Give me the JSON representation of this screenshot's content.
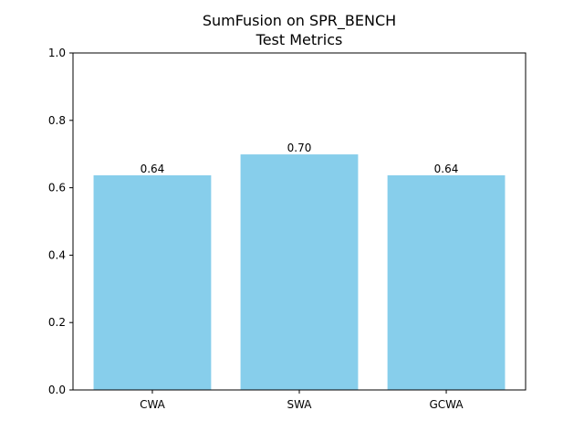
{
  "chart_data": {
    "type": "bar",
    "title_lines": [
      "SumFusion on SPR_BENCH",
      "Test Metrics"
    ],
    "categories": [
      "CWA",
      "SWA",
      "GCWA"
    ],
    "values": [
      0.637,
      0.699,
      0.637
    ],
    "value_labels": [
      "0.64",
      "0.70",
      "0.64"
    ],
    "ylim": [
      0,
      1.0
    ],
    "yticks": [
      0.0,
      0.2,
      0.4,
      0.6,
      0.8,
      1.0
    ],
    "ytick_labels": [
      "0.0",
      "0.2",
      "0.4",
      "0.6",
      "0.8",
      "1.0"
    ],
    "xlabel": "",
    "ylabel": "",
    "grid": false,
    "bar_color": "#87ceeb"
  }
}
